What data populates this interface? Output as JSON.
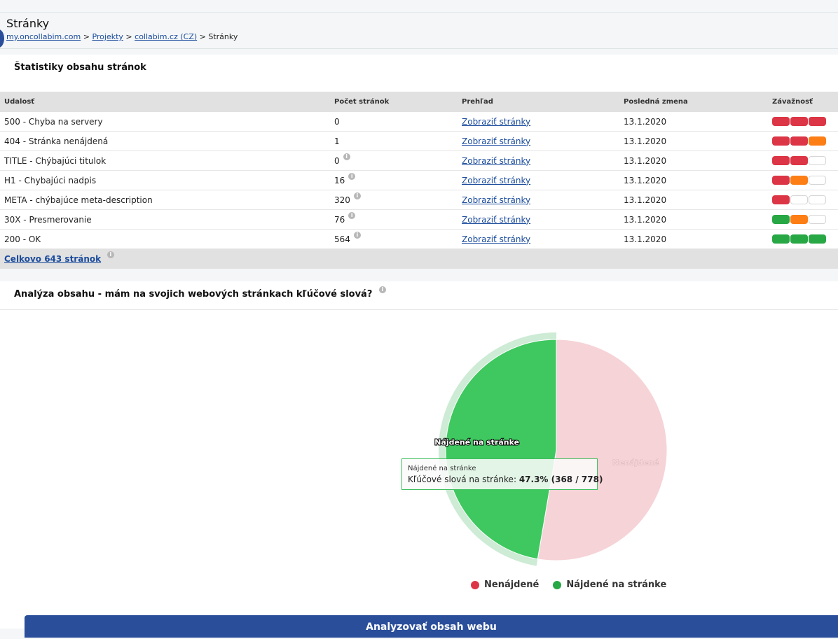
{
  "page": {
    "title": "Stránky",
    "breadcrumb": [
      {
        "label": "my.oncollabim.com",
        "link": true
      },
      {
        "label": "Projekty",
        "link": true
      },
      {
        "label": "collabim.cz (CZ)",
        "link": true
      },
      {
        "label": "Stránky",
        "link": false
      }
    ],
    "breadcrumb_separator": ">"
  },
  "stats": {
    "title": "Štatistiky obsahu stránok",
    "columns": [
      "Udalosť",
      "Počet stránok",
      "Prehľad",
      "Posledná zmena",
      "Závažnosť"
    ],
    "rows": [
      {
        "event": "500 - Chyba na servery",
        "count": "0",
        "info": false,
        "overview": "Zobraziť stránky",
        "date": "13.1.2020",
        "severity": [
          "red",
          "red",
          "red"
        ]
      },
      {
        "event": "404 - Stránka nenájdená",
        "count": "1",
        "info": false,
        "overview": "Zobraziť stránky",
        "date": "13.1.2020",
        "severity": [
          "red",
          "red",
          "orange"
        ]
      },
      {
        "event": "TITLE - Chýbajúci titulok",
        "count": "0",
        "info": true,
        "overview": "Zobraziť stránky",
        "date": "13.1.2020",
        "severity": [
          "red",
          "red",
          "empty"
        ]
      },
      {
        "event": "H1 - Chybajúci nadpis",
        "count": "16",
        "info": true,
        "overview": "Zobraziť stránky",
        "date": "13.1.2020",
        "severity": [
          "red",
          "orange",
          "empty"
        ]
      },
      {
        "event": "META - chýbajúce meta-description",
        "count": "320",
        "info": true,
        "overview": "Zobraziť stránky",
        "date": "13.1.2020",
        "severity": [
          "red",
          "empty",
          "empty"
        ]
      },
      {
        "event": "30X - Presmerovanie",
        "count": "76",
        "info": true,
        "overview": "Zobraziť stránky",
        "date": "13.1.2020",
        "severity": [
          "green",
          "orange",
          "empty"
        ]
      },
      {
        "event": "200 - OK",
        "count": "564",
        "info": true,
        "overview": "Zobraziť stránky",
        "date": "13.1.2020",
        "severity": [
          "green",
          "green",
          "green"
        ]
      }
    ],
    "total": "Celkovo 643 stránok",
    "info_glyph": "i"
  },
  "analysis": {
    "title": "Analýza obsahu - mám na svojich webových stránkach kľúčové slová?",
    "tooltip": {
      "series": "Nájdené na stránke",
      "label": "Kľúčové slová na stránke:",
      "value": "47.3% (368 / 778)"
    },
    "button": "Analyzovať obsah webu"
  },
  "colors": {
    "red": "#dc3545",
    "orange": "#fd7e14",
    "green": "#28a745",
    "empty": "#ffffff",
    "pie_found": "#3ec85f",
    "pie_found_halo": "#cdebd5",
    "pie_not_found": "#f6d3d7",
    "legend_not_found": "#dc3545",
    "legend_found": "#28a745",
    "link": "#1a4b9c",
    "button": "#2b4e9b"
  },
  "chart_data": {
    "type": "pie",
    "title": "",
    "slices": [
      {
        "name": "Nenájdené",
        "value": 410,
        "color": "#f6d3d7",
        "label": "Nenájdené",
        "legend_color": "#dc3545"
      },
      {
        "name": "Nájdené na stránke",
        "value": 368,
        "color": "#3ec85f",
        "label": "Nájdené na stránke",
        "legend_color": "#28a745",
        "highlighted": true
      }
    ],
    "total": 778,
    "legend_position": "bottom"
  }
}
